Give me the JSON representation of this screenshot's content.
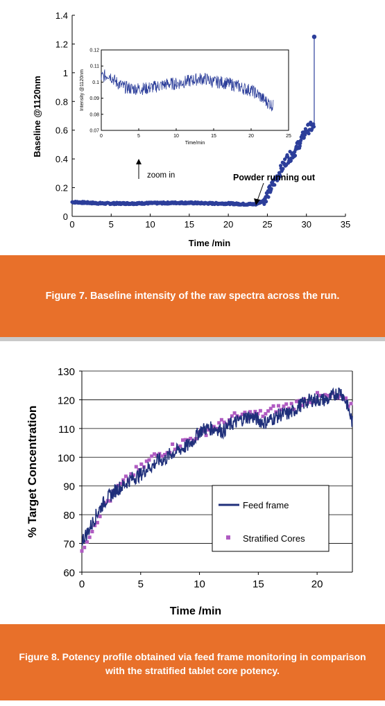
{
  "chart_data": [
    {
      "type": "scatter",
      "xlabel": "Time /min",
      "ylabel": "Baseline @1120nm",
      "xlim": [
        0,
        35
      ],
      "ylim": [
        0,
        1.4
      ],
      "x_ticks": [
        "0",
        "5",
        "10",
        "15",
        "20",
        "25",
        "30",
        "35"
      ],
      "y_ticks": [
        "0",
        "0.2",
        "0.4",
        "0.6",
        "0.8",
        "1",
        "1.2",
        "1.4"
      ],
      "grid": false,
      "color": "#2c3e9a",
      "series": [
        {
          "x": [
            0,
            2,
            4,
            6,
            8,
            10,
            12,
            14,
            16,
            18,
            20,
            22,
            23.5,
            24.5,
            25,
            25.5,
            26,
            26.5,
            27,
            27.5,
            28,
            28.5,
            29,
            29.5,
            30,
            30.5,
            31
          ],
          "y": [
            0.1,
            0.095,
            0.09,
            0.09,
            0.09,
            0.092,
            0.093,
            0.095,
            0.093,
            0.09,
            0.09,
            0.085,
            0.085,
            0.11,
            0.15,
            0.2,
            0.25,
            0.3,
            0.35,
            0.4,
            0.42,
            0.45,
            0.5,
            0.55,
            0.6,
            0.62,
            0.62
          ]
        }
      ],
      "spike": {
        "x": 31,
        "y": 1.25
      },
      "annotations": [
        {
          "text": "zoom in"
        },
        {
          "text": "Powder running out"
        }
      ],
      "inset": {
        "xlabel": "Time/min",
        "ylabel": "Intensity @1120nm",
        "xlim": [
          0,
          25
        ],
        "ylim": [
          0.07,
          0.12
        ],
        "x_ticks": [
          "0",
          "5",
          "10",
          "15",
          "20",
          "25"
        ],
        "y_ticks": [
          "0.07",
          "0.08",
          "0.09",
          "0.1",
          "0.11",
          "0.12"
        ],
        "x": [
          0,
          1,
          2,
          3,
          4,
          5,
          6,
          7,
          8,
          9,
          10,
          11,
          12,
          13,
          14,
          15,
          16,
          17,
          18,
          19,
          20,
          21,
          22,
          23
        ],
        "y": [
          0.103,
          0.105,
          0.1,
          0.097,
          0.096,
          0.096,
          0.096,
          0.097,
          0.098,
          0.099,
          0.099,
          0.1,
          0.101,
          0.102,
          0.102,
          0.1,
          0.1,
          0.099,
          0.098,
          0.096,
          0.095,
          0.092,
          0.088,
          0.085
        ]
      }
    },
    {
      "type": "line",
      "xlabel": "Time /min",
      "ylabel": "% Target Concentration",
      "xlim": [
        0,
        23
      ],
      "ylim": [
        60,
        130
      ],
      "x_ticks": [
        "0",
        "5",
        "10",
        "15",
        "20"
      ],
      "y_ticks": [
        "60",
        "70",
        "80",
        "90",
        "100",
        "110",
        "120",
        "130"
      ],
      "grid": true,
      "legend": "center-right",
      "series": [
        {
          "name": "Feed frame",
          "color": "#1f2f7a",
          "x": [
            0,
            0.5,
            1,
            1.5,
            2,
            2.5,
            3,
            3.5,
            4,
            4.5,
            5,
            5.5,
            6,
            6.5,
            7,
            7.5,
            8,
            8.5,
            9,
            9.5,
            10,
            10.5,
            11,
            11.5,
            12,
            12.5,
            13,
            13.5,
            14,
            14.5,
            15,
            15.5,
            16,
            16.5,
            17,
            17.5,
            18,
            18.5,
            19,
            19.5,
            20,
            20.5,
            21,
            21.5,
            22,
            22.5,
            23
          ],
          "y": [
            71,
            74,
            78,
            82,
            85,
            87,
            89,
            90,
            92,
            93,
            94,
            96,
            97,
            99,
            99,
            101,
            102,
            103,
            104,
            106,
            109,
            110,
            110,
            110,
            109,
            111,
            112,
            113,
            114,
            114,
            113,
            112,
            113,
            114,
            115,
            115,
            116,
            118,
            119,
            120,
            120,
            120,
            120,
            122,
            123,
            119,
            112
          ]
        },
        {
          "name": "Stratified Cores",
          "color": "#b05cc2",
          "x": [
            0,
            0.5,
            1,
            1.5,
            2,
            2.5,
            3,
            3.5,
            4,
            4.5,
            5,
            5.5,
            6,
            6.5,
            7,
            7.5,
            8,
            8.5,
            9,
            9.5,
            10,
            10.5,
            11,
            11.5,
            12,
            12.5,
            13,
            13.5,
            14,
            14.5,
            15,
            15.5,
            16,
            16.5,
            17,
            17.5,
            18,
            18.5,
            19,
            19.5,
            20,
            20.5,
            21,
            21.5,
            22,
            22.5,
            23
          ],
          "y": [
            68,
            72,
            76,
            80,
            84,
            86,
            89,
            91,
            93,
            95,
            96,
            98,
            100,
            101,
            102,
            103,
            104,
            105,
            106,
            107,
            108,
            109,
            110,
            111,
            112,
            113,
            114,
            114,
            115,
            115,
            115,
            115,
            116,
            117,
            117,
            118,
            118,
            119,
            120,
            120,
            121,
            121,
            121,
            121,
            120,
            119,
            118
          ]
        }
      ]
    }
  ],
  "captions": {
    "fig7": "Figure 7. Baseline intensity of the raw spectra across the run.",
    "fig8": "Figure 8.  Potency profile obtained via feed frame monitoring in comparison with the stratified tablet core potency."
  }
}
